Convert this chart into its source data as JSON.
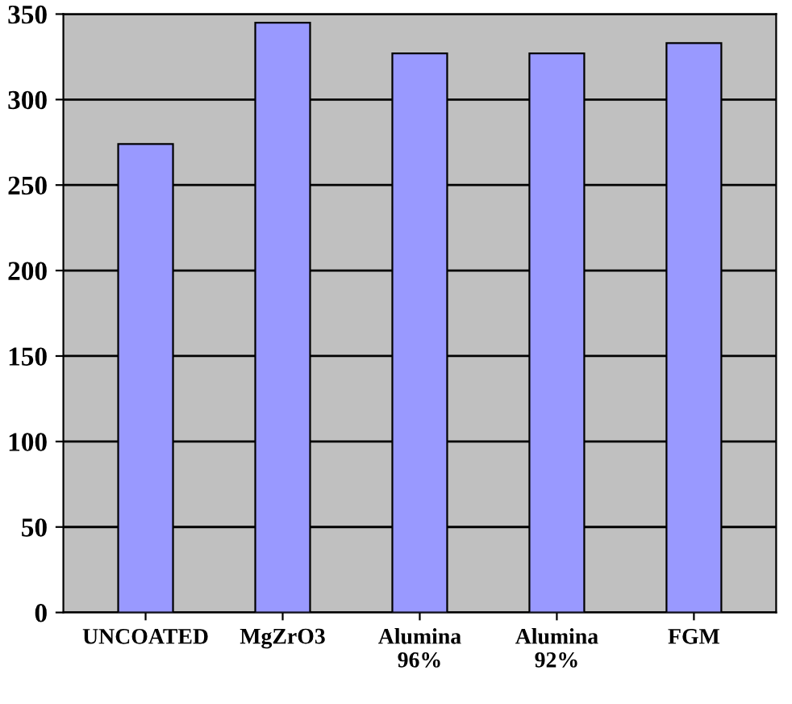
{
  "chart_data": {
    "type": "bar",
    "categories": [
      "UNCOATED",
      "MgZrO3",
      "Alumina\n96%",
      "Alumina\n92%",
      "FGM"
    ],
    "values": [
      274,
      345,
      327,
      327,
      333
    ],
    "color": "#9999ff",
    "ylim": [
      0,
      350
    ],
    "yticks": [
      0,
      50,
      100,
      150,
      200,
      250,
      300,
      350
    ],
    "grid": "y",
    "legend": false
  }
}
